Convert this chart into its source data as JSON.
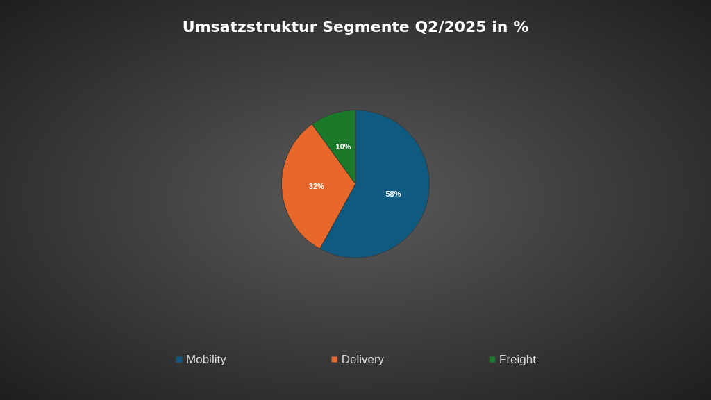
{
  "chart_data": {
    "type": "pie",
    "title": "Umsatzstruktur Segmente Q2/2025 in %",
    "categories": [
      "Mobility",
      "Delivery",
      "Freight"
    ],
    "values": [
      58,
      32,
      10
    ],
    "colors": [
      "#0e5a80",
      "#e8672a",
      "#1a7a2a"
    ],
    "value_labels": [
      "58%",
      "32%",
      "10%"
    ],
    "legend": "bottom"
  }
}
